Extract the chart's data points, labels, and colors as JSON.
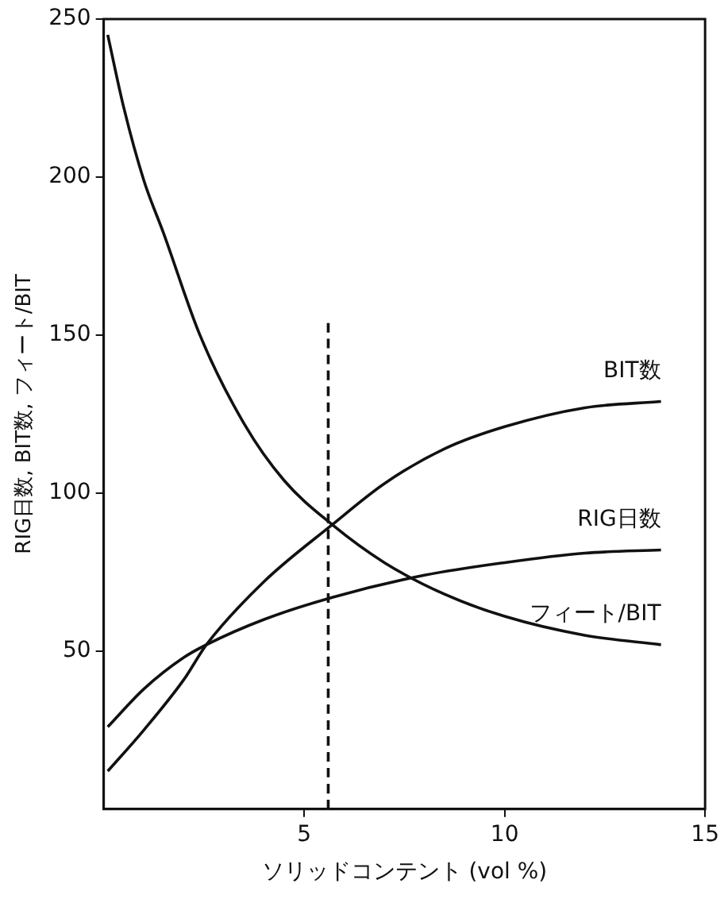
{
  "chart_data": {
    "type": "line",
    "xlabel": "ソリッドコンテント (vol %)",
    "ylabel": "RIG日数, BIT数, フィート/BIT",
    "xlim": [
      0,
      15
    ],
    "xticks": [
      5,
      10,
      15
    ],
    "ylim": [
      0,
      250
    ],
    "yticks": [
      50,
      100,
      150,
      200,
      250
    ],
    "grid": false,
    "legend": false,
    "marker": "none",
    "line_style": "solid",
    "series": [
      {
        "name": "BIT数",
        "color": "#111111",
        "x": [
          0.1,
          1,
          2,
          2.56,
          4,
          5.7,
          7,
          8.5,
          10,
          12,
          13.9
        ],
        "values": [
          12,
          25,
          41,
          52,
          72,
          90,
          103,
          114,
          121,
          127,
          129
        ]
      },
      {
        "name": "RIG日数",
        "color": "#111111",
        "x": [
          0.1,
          1,
          2,
          2.56,
          4,
          5.7,
          8,
          10,
          12,
          13.9
        ],
        "values": [
          26,
          38,
          48,
          52,
          60,
          67,
          74,
          78,
          81,
          82
        ]
      },
      {
        "name": "フィート/BIT",
        "color": "#111111",
        "x": [
          0.1,
          0.5,
          1,
          1.5,
          2.4,
          3.5,
          4.5,
          5.7,
          7,
          8.5,
          10,
          12,
          13.9
        ],
        "values": [
          245,
          222,
          199,
          182,
          150,
          122,
          104,
          90,
          78,
          68,
          61,
          55,
          52
        ]
      },
      {
        "color": "#111111",
        "line_style": "dashed",
        "x": [
          5.6,
          5.6
        ],
        "values": [
          0,
          154
        ]
      }
    ]
  }
}
